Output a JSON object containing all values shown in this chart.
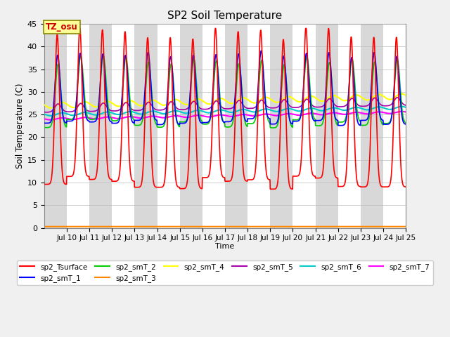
{
  "title": "SP2 Soil Temperature",
  "xlabel": "Time",
  "ylabel": "Soil Temperature (C)",
  "ylim": [
    0,
    45
  ],
  "tz_label": "TZ_osu",
  "series_colors": {
    "sp2_Tsurface": "#FF0000",
    "sp2_smT_1": "#0000FF",
    "sp2_smT_2": "#00CC00",
    "sp2_smT_3": "#FF8800",
    "sp2_smT_4": "#FFFF00",
    "sp2_smT_5": "#AA00AA",
    "sp2_smT_6": "#00CCCC",
    "sp2_smT_7": "#FF00FF"
  },
  "start_day": 9,
  "end_day": 25,
  "n_per_day": 96,
  "x_tick_days": [
    10,
    11,
    12,
    13,
    14,
    15,
    16,
    17,
    18,
    19,
    20,
    21,
    22,
    23,
    24,
    25
  ],
  "x_tick_labels": [
    "Jul 10",
    "Jul 11",
    "Jul 12",
    "Jul 13",
    "Jul 14",
    "Jul 15",
    "Jul 16",
    "Jul 17",
    "Jul 18",
    "Jul 19",
    "Jul 20",
    "Jul 21",
    "Jul 22",
    "Jul 23",
    "Jul 24",
    "Jul 25"
  ],
  "band_colors": [
    "#D8D8D8",
    "#FFFFFF"
  ],
  "fig_bg": "#F0F0F0",
  "plot_bg": "#FFFFFF"
}
